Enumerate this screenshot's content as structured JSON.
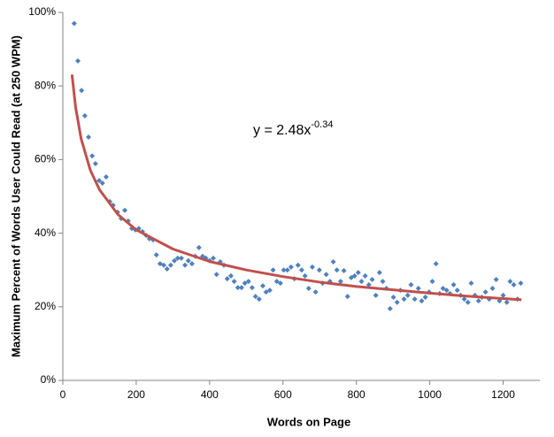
{
  "chart_data": {
    "type": "scatter",
    "x_label": "Words on Page",
    "y_label": "Maximum Percent of Words User Could Read (at 250 WPM)",
    "annotation": {
      "text": "y = 2.48x",
      "exponent": "-0.34"
    },
    "xlim": [
      0,
      1300
    ],
    "xticks": [
      0,
      200,
      400,
      600,
      800,
      1000,
      1200
    ],
    "ylim": [
      0,
      100
    ],
    "yticks": [
      {
        "value": 0,
        "label": "0%"
      },
      {
        "value": 20,
        "label": "20%"
      },
      {
        "value": 40,
        "label": "40%"
      },
      {
        "value": 60,
        "label": "60%"
      },
      {
        "value": 80,
        "label": "80%"
      },
      {
        "value": 100,
        "label": "100%"
      }
    ],
    "grid": false,
    "points": {
      "color": "#4f81bd",
      "x": [
        31,
        41,
        51,
        60,
        70,
        80,
        89,
        99,
        108,
        118,
        128,
        137,
        149,
        159,
        169,
        178,
        188,
        198,
        207,
        217,
        227,
        236,
        246,
        255,
        265,
        275,
        284,
        294,
        304,
        313,
        323,
        333,
        342,
        352,
        361,
        371,
        381,
        390,
        400,
        410,
        419,
        429,
        439,
        448,
        458,
        467,
        477,
        487,
        496,
        506,
        516,
        525,
        535,
        545,
        554,
        564,
        573,
        583,
        593,
        602,
        612,
        622,
        631,
        641,
        651,
        660,
        670,
        680,
        689,
        699,
        708,
        718,
        728,
        737,
        747,
        757,
        766,
        776,
        786,
        795,
        805,
        814,
        824,
        834,
        843,
        853,
        863,
        872,
        882,
        892,
        901,
        911,
        920,
        930,
        940,
        949,
        959,
        969,
        978,
        988,
        998,
        1007,
        1017,
        1027,
        1036,
        1046,
        1055,
        1065,
        1075,
        1084,
        1094,
        1104,
        1113,
        1123,
        1133,
        1142,
        1152,
        1162,
        1171,
        1181,
        1190,
        1200,
        1210,
        1219,
        1229,
        1239,
        1248
      ],
      "values": [
        97,
        86.8,
        78.8,
        71.9,
        66.1,
        61,
        58.9,
        54.3,
        53.6,
        55.3,
        48.6,
        47.6,
        45.7,
        44,
        46.2,
        43.3,
        41.3,
        40.9,
        41.3,
        40.4,
        39.4,
        38.5,
        38.2,
        34.1,
        31.7,
        31.3,
        30.3,
        31.3,
        32.5,
        33.2,
        33.2,
        31.3,
        32.5,
        31.7,
        33.7,
        36.1,
        33.7,
        33.2,
        32.5,
        33.2,
        28.8,
        32.2,
        31.3,
        27.6,
        28.4,
        26.9,
        25.2,
        25.2,
        26.4,
        26.9,
        25.2,
        22.8,
        22.1,
        25.7,
        24,
        24.5,
        30,
        26.9,
        26.4,
        30,
        30,
        30.8,
        27.6,
        31.3,
        30,
        28.4,
        25,
        30.8,
        24,
        30,
        26.4,
        28.8,
        26.9,
        32.2,
        30,
        26.9,
        29.8,
        22.8,
        27.9,
        28.4,
        29.3,
        26.9,
        28.4,
        26,
        27.4,
        23.1,
        29.3,
        26.9,
        25,
        19.5,
        22.6,
        21.2,
        24.5,
        22.1,
        23.1,
        26,
        22.1,
        25,
        21.6,
        22.6,
        24,
        26.9,
        31.7,
        23.6,
        25,
        24.5,
        23.6,
        26,
        24.5,
        23.1,
        22.1,
        21.2,
        26.4,
        23.1,
        21.6,
        22.6,
        24,
        22.1,
        25,
        27.4,
        21.6,
        23.1,
        21.2,
        26.9,
        26,
        22.1,
        26.4
      ]
    },
    "trendline": {
      "color": "#c0504d",
      "x": [
        25,
        35,
        50,
        75,
        100,
        150,
        200,
        300,
        400,
        500,
        600,
        700,
        800,
        900,
        1000,
        1100,
        1250
      ],
      "values": [
        83.1,
        74.1,
        65.6,
        57.1,
        51.8,
        45.1,
        40.9,
        35.7,
        32.3,
        30.0,
        28.2,
        26.7,
        25.5,
        24.6,
        23.7,
        22.9,
        21.9
      ]
    }
  }
}
